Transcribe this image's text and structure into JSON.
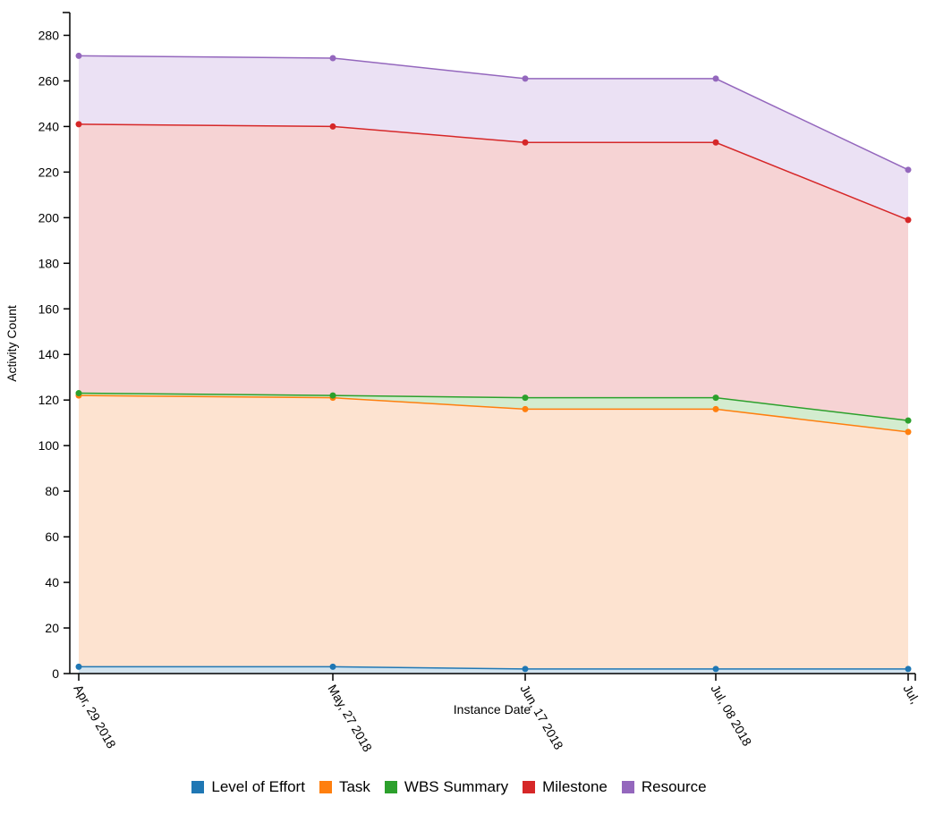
{
  "chart_data": {
    "type": "area",
    "stacked": true,
    "categories": [
      "Apr, 29 2018",
      "May, 27 2018",
      "Jun, 17 2018",
      "Jul, 08 2018",
      "Jul,"
    ],
    "ylabel": "Activity Count",
    "xlabel": "Instance Date",
    "ylim": [
      0,
      290
    ],
    "yticks": [
      0,
      20,
      40,
      60,
      80,
      100,
      120,
      140,
      160,
      180,
      200,
      220,
      240,
      260,
      280
    ],
    "grid": false,
    "legend_position": "bottom-center",
    "series": [
      {
        "name": "Level of Effort",
        "values": [
          3,
          3,
          2,
          2,
          2
        ],
        "color": "#1f77b4",
        "fill": "#d2e3ee"
      },
      {
        "name": "Task",
        "values": [
          119,
          118,
          114,
          114,
          104
        ],
        "color": "#ff7f0e",
        "fill": "#fde3d0"
      },
      {
        "name": "WBS Summary",
        "values": [
          1,
          1,
          5,
          5,
          5
        ],
        "color": "#2ca02c",
        "fill": "#d3eccf"
      },
      {
        "name": "Milestone",
        "values": [
          118,
          118,
          112,
          112,
          88
        ],
        "color": "#d62728",
        "fill": "#f6d3d4"
      },
      {
        "name": "Resource",
        "values": [
          30,
          30,
          28,
          28,
          22
        ],
        "color": "#9467bd",
        "fill": "#ebe1f4"
      }
    ]
  }
}
